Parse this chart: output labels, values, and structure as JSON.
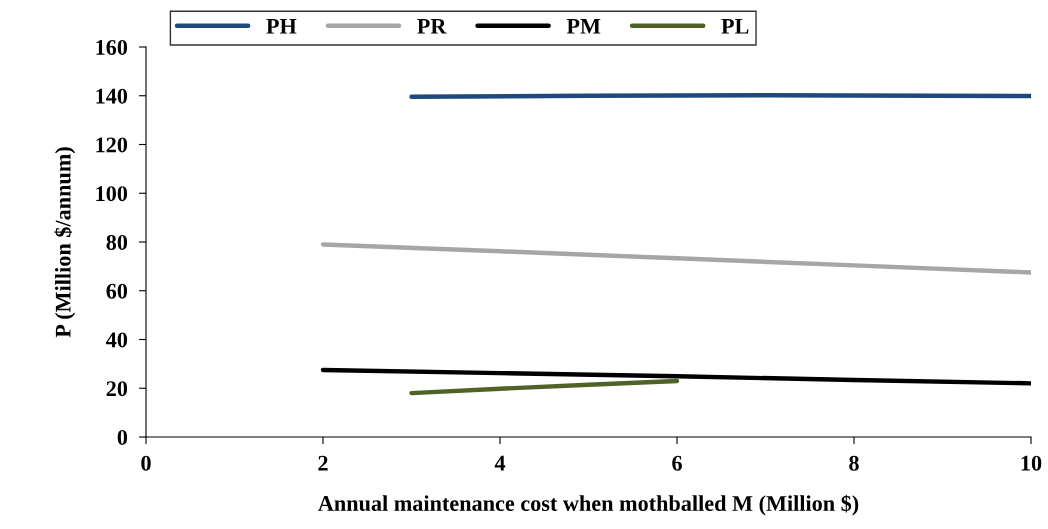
{
  "chart_data": {
    "type": "line",
    "xlabel": "Annual maintenance cost when mothballed M (Million $)",
    "ylabel": "P (Million $/annum)",
    "xlim": [
      0,
      10
    ],
    "xticks": [
      0,
      2,
      4,
      6,
      8,
      10
    ],
    "ylim": [
      0,
      160
    ],
    "yticks": [
      0,
      20,
      40,
      60,
      80,
      100,
      120,
      140,
      160
    ],
    "grid": false,
    "legend": "top",
    "marker": "none",
    "line_style": "solid",
    "series": [
      {
        "name": "PH",
        "color": "#1f497d",
        "x": [
          3,
          5,
          7,
          10
        ],
        "values": [
          139.6,
          140,
          140.2,
          139.9
        ]
      },
      {
        "name": "PR",
        "color": "#a6a6a6",
        "x": [
          2,
          4,
          6,
          8,
          10
        ],
        "values": [
          79,
          76.2,
          73.3,
          70.4,
          67.5
        ]
      },
      {
        "name": "PM",
        "color": "#000000",
        "x": [
          2,
          4,
          6,
          8,
          10
        ],
        "values": [
          27.5,
          26.2,
          24.9,
          23.4,
          22
        ]
      },
      {
        "name": "PL",
        "color": "#4f6228",
        "x": [
          3,
          4,
          5,
          6
        ],
        "values": [
          18,
          19.8,
          21.4,
          23
        ]
      }
    ]
  }
}
